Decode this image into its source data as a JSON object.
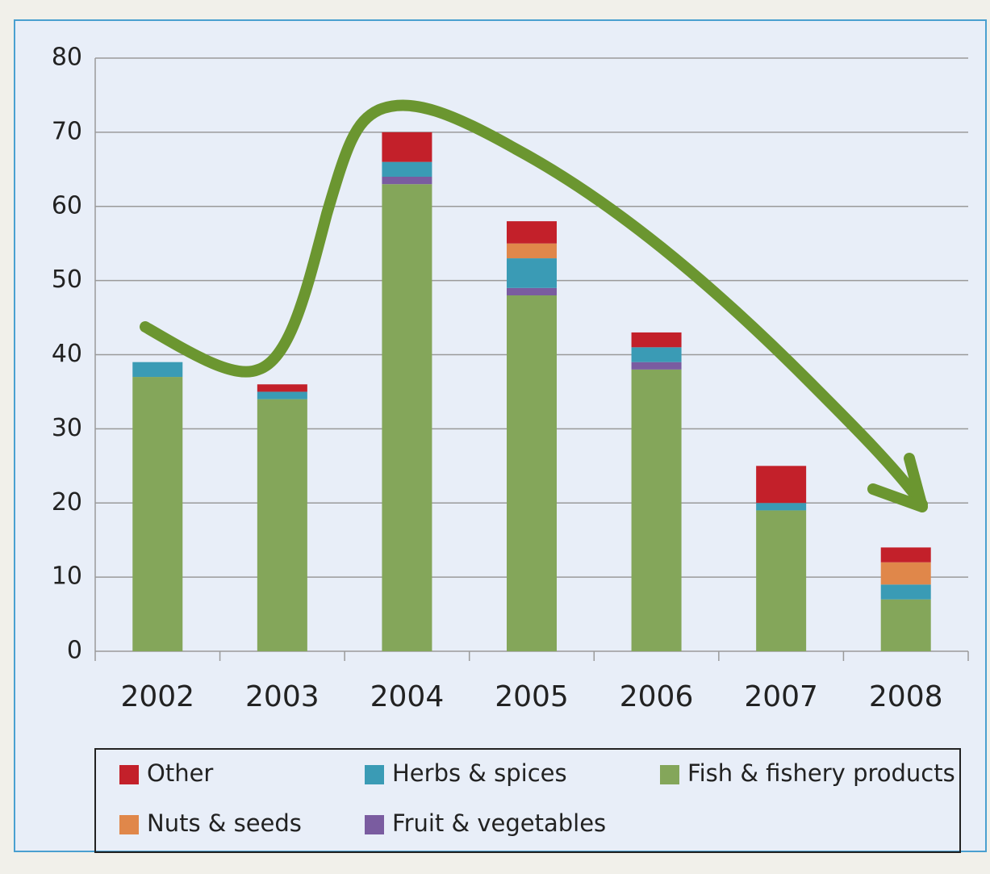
{
  "chart_data": {
    "type": "bar",
    "stacked": true,
    "categories": [
      "2002",
      "2003",
      "2004",
      "2005",
      "2006",
      "2007",
      "2008"
    ],
    "series": [
      {
        "name": "Fish & fishery products",
        "color": "#84a65a",
        "values": [
          37,
          34,
          63,
          48,
          38,
          19,
          7
        ]
      },
      {
        "name": "Fruit & vegetables",
        "color": "#7a5ca0",
        "values": [
          0,
          0,
          1,
          1,
          1,
          0,
          0
        ]
      },
      {
        "name": "Herbs & spices",
        "color": "#3a9bb5",
        "values": [
          2,
          1,
          2,
          4,
          2,
          1,
          2
        ]
      },
      {
        "name": "Nuts & seeds",
        "color": "#e0874a",
        "values": [
          0,
          0,
          0,
          2,
          0,
          0,
          3
        ]
      },
      {
        "name": "Other",
        "color": "#c3202a",
        "values": [
          0,
          1,
          4,
          3,
          2,
          5,
          2
        ]
      }
    ],
    "ylim": [
      0,
      80
    ],
    "yticks": [
      0,
      10,
      20,
      30,
      40,
      50,
      60,
      70,
      80
    ],
    "grid": true
  }
}
